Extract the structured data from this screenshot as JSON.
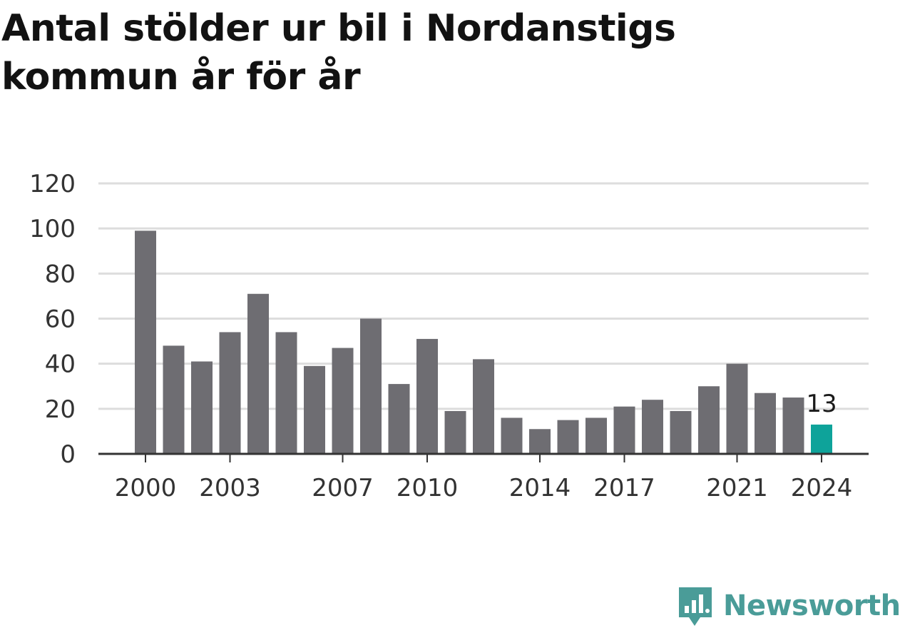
{
  "title": "Antal stölder ur bil i Nordanstigs kommun år för år",
  "brand": {
    "name": "Newsworthy",
    "icon": "newsworthy-logo-icon",
    "color": "#4a9c98"
  },
  "colors": {
    "bar": "#6e6d72",
    "highlight": "#0ea39a",
    "grid": "#dddddd",
    "axis": "#333333"
  },
  "chart_data": {
    "type": "bar",
    "title": "Antal stölder ur bil i Nordanstigs kommun år för år",
    "categories": [
      "2000",
      "2001",
      "2002",
      "2003",
      "2004",
      "2005",
      "2006",
      "2007",
      "2008",
      "2009",
      "2010",
      "2011",
      "2012",
      "2013",
      "2014",
      "2015",
      "2016",
      "2017",
      "2018",
      "2019",
      "2020",
      "2021",
      "2022",
      "2023",
      "2024"
    ],
    "values": [
      99,
      48,
      41,
      54,
      71,
      54,
      39,
      47,
      60,
      31,
      51,
      19,
      42,
      16,
      11,
      15,
      16,
      21,
      24,
      19,
      30,
      40,
      27,
      25,
      13
    ],
    "highlight_index": 24,
    "highlight_label": "13",
    "x_tick_labels": [
      "2000",
      "2003",
      "2007",
      "2010",
      "2014",
      "2017",
      "2021",
      "2024"
    ],
    "y_ticks": [
      0,
      20,
      40,
      60,
      80,
      100,
      120
    ],
    "ylim": [
      0,
      120
    ],
    "xlabel": "",
    "ylabel": "",
    "grid": true,
    "legend": "none"
  }
}
